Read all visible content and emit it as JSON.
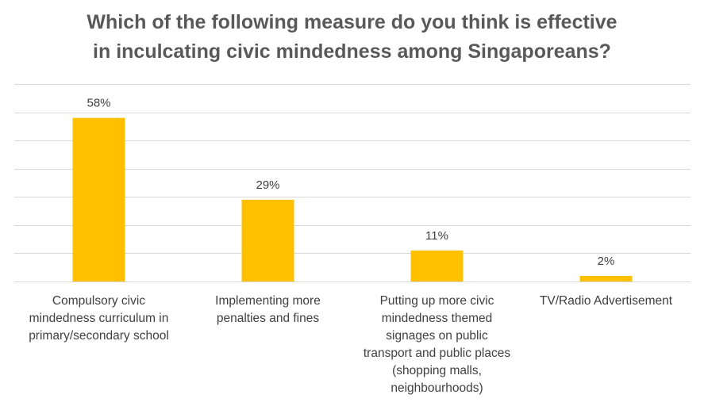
{
  "chart_data": {
    "type": "bar",
    "title_lines": [
      "Which of the following measure do you think is effective",
      "in inculcating civic mindedness among Singaporeans?"
    ],
    "category_label_lines": [
      [
        "Compulsory civic",
        "mindedness curriculum in",
        "primary/secondary school"
      ],
      [
        "Implementing more",
        "penalties and fines"
      ],
      [
        "Putting up more civic",
        "mindedness themed",
        "signages on public",
        "transport and public places",
        "(shopping malls,",
        "neighbourhoods)"
      ],
      [
        "TV/Radio Advertisement"
      ]
    ],
    "values": [
      58,
      29,
      11,
      2
    ],
    "data_labels": [
      "58%",
      "29%",
      "11%",
      "2%"
    ],
    "ylim": [
      0,
      70
    ],
    "grid": true,
    "bar_color": "#FFC000",
    "text_color": "#595959",
    "grid_color": "#D9D9D9"
  }
}
